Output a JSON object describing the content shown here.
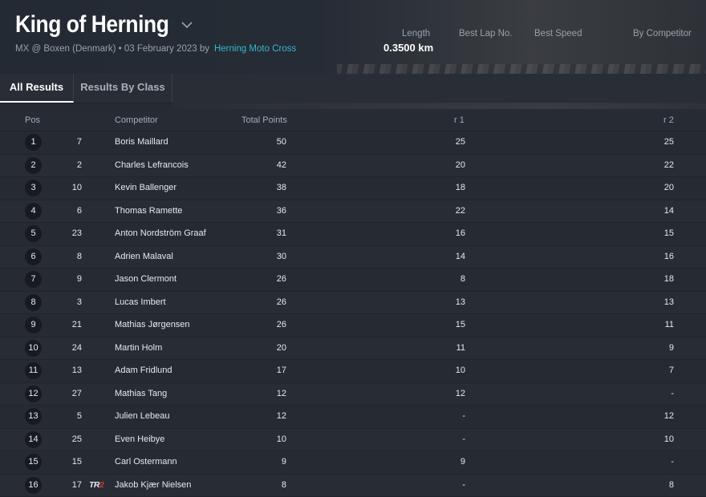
{
  "event": {
    "title": "King of Herning",
    "subtitle": "MX @ Boxen (Denmark) • 03 February 2023 by",
    "organizer": "Herning Moto Cross"
  },
  "stats": {
    "length_label": "Length",
    "length_value": "0.3500 km",
    "best_lap_label": "Best Lap No.",
    "best_speed_label": "Best Speed",
    "by_competitor_label": "By Competitor"
  },
  "tabs": [
    {
      "label": "All Results",
      "active": true
    },
    {
      "label": "Results By Class",
      "active": false
    }
  ],
  "table": {
    "headers": {
      "pos": "Pos",
      "competitor": "Competitor",
      "total": "Total Points",
      "r1": "r 1",
      "r2": "r 2"
    },
    "rows": [
      {
        "pos": "1",
        "num": "7",
        "name": "Boris Maillard",
        "total": "50",
        "r1": "25",
        "r2": "25"
      },
      {
        "pos": "2",
        "num": "2",
        "name": "Charles Lefrancois",
        "total": "42",
        "r1": "20",
        "r2": "22"
      },
      {
        "pos": "3",
        "num": "10",
        "name": "Kevin Ballenger",
        "total": "38",
        "r1": "18",
        "r2": "20"
      },
      {
        "pos": "4",
        "num": "6",
        "name": "Thomas Ramette",
        "total": "36",
        "r1": "22",
        "r2": "14"
      },
      {
        "pos": "5",
        "num": "23",
        "name": "Anton Nordström Graaf",
        "total": "31",
        "r1": "16",
        "r2": "15"
      },
      {
        "pos": "6",
        "num": "8",
        "name": "Adrien Malaval",
        "total": "30",
        "r1": "14",
        "r2": "16"
      },
      {
        "pos": "7",
        "num": "9",
        "name": "Jason Clermont",
        "total": "26",
        "r1": "8",
        "r2": "18"
      },
      {
        "pos": "8",
        "num": "3",
        "name": "Lucas Imbert",
        "total": "26",
        "r1": "13",
        "r2": "13"
      },
      {
        "pos": "9",
        "num": "21",
        "name": "Mathias Jørgensen",
        "total": "26",
        "r1": "15",
        "r2": "11"
      },
      {
        "pos": "10",
        "num": "24",
        "name": "Martin Holm",
        "total": "20",
        "r1": "11",
        "r2": "9"
      },
      {
        "pos": "11",
        "num": "13",
        "name": "Adam Fridlund",
        "total": "17",
        "r1": "10",
        "r2": "7"
      },
      {
        "pos": "12",
        "num": "27",
        "name": "Mathias Tang",
        "total": "12",
        "r1": "12",
        "r2": "-"
      },
      {
        "pos": "13",
        "num": "5",
        "name": "Julien Lebeau",
        "total": "12",
        "r1": "-",
        "r2": "12"
      },
      {
        "pos": "14",
        "num": "25",
        "name": "Even Heibye",
        "total": "10",
        "r1": "-",
        "r2": "10"
      },
      {
        "pos": "15",
        "num": "15",
        "name": "Carl Ostermann",
        "total": "9",
        "r1": "9",
        "r2": "-"
      },
      {
        "pos": "16",
        "num": "17",
        "name": "Jakob Kjær Nielsen",
        "total": "8",
        "r1": "-",
        "r2": "8",
        "team_logo": "TR2"
      }
    ]
  },
  "colors": {
    "accent_link": "#35b7d0",
    "background": "#262b33",
    "team_logo_red": "#e0342b"
  }
}
